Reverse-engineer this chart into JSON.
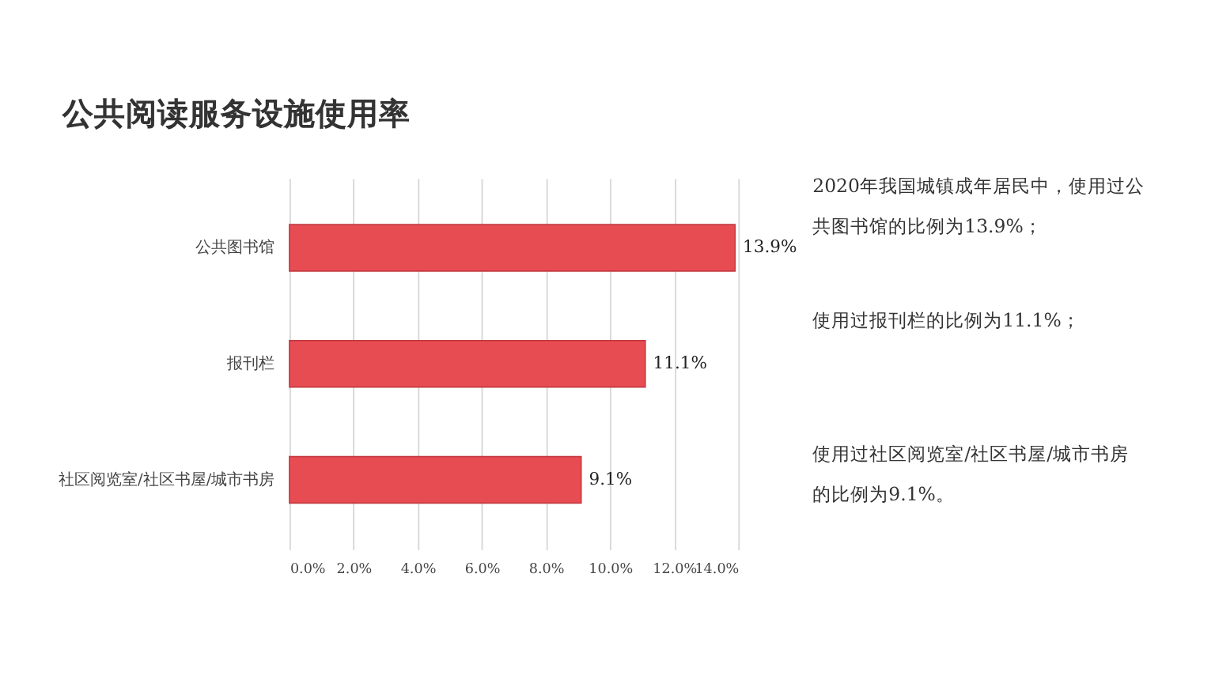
{
  "chart_data": {
    "type": "bar",
    "orientation": "horizontal",
    "title": "公共阅读服务设施使用率",
    "categories": [
      "公共图书馆",
      "报刊栏",
      "社区阅览室/社区书屋/城市书房"
    ],
    "values": [
      13.9,
      11.1,
      9.1
    ],
    "value_labels": [
      "13.9%",
      "11.1%",
      "9.1%"
    ],
    "color": "#e84c53",
    "xlim": [
      0,
      14
    ],
    "xticks": [
      {
        "value": 0,
        "label": "0.0%"
      },
      {
        "value": 2,
        "label": "2.0%"
      },
      {
        "value": 4,
        "label": "4.0%"
      },
      {
        "value": 6,
        "label": "6.0%"
      },
      {
        "value": 8,
        "label": "8.0%"
      },
      {
        "value": 10,
        "label": "10.0%"
      },
      {
        "value": 12,
        "label": "12.0%"
      },
      {
        "value": 14,
        "label": "14.0%"
      }
    ],
    "grid": "x",
    "annotations": [
      "2020年我国城镇成年居民中，使用过公共图书馆的比例为13.9%；",
      "使用过报刊栏的比例为11.1%；",
      "使用过社区阅览室/社区书屋/城市书房的比例为9.1%。"
    ]
  }
}
